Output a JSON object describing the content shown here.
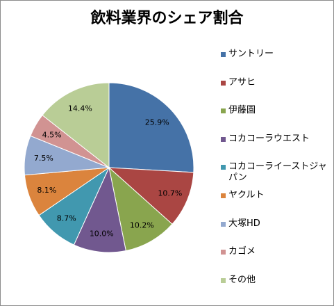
{
  "chart_data": {
    "type": "pie",
    "title": "飲料業界のシェア割合",
    "legend_position": "right",
    "start_angle_deg": 0,
    "direction": "clockwise",
    "categories": [
      "サントリー",
      "アサヒ",
      "伊藤園",
      "コカコーラウエスト",
      "コカコーライーストジャパン",
      "ヤクルト",
      "大塚HD",
      "カゴメ",
      "その他"
    ],
    "values": [
      25.9,
      10.7,
      10.2,
      10.0,
      8.7,
      8.1,
      7.5,
      4.5,
      14.4
    ],
    "labels": [
      "25.9%",
      "10.7%",
      "10.2%",
      "10.0%",
      "8.7%",
      "8.1%",
      "7.5%",
      "4.5%",
      "14.4%"
    ],
    "colors": [
      "#4572a7",
      "#aa4643",
      "#89a54e",
      "#71588f",
      "#4198af",
      "#db843d",
      "#93a9cf",
      "#d19392",
      "#b9cd96"
    ]
  }
}
